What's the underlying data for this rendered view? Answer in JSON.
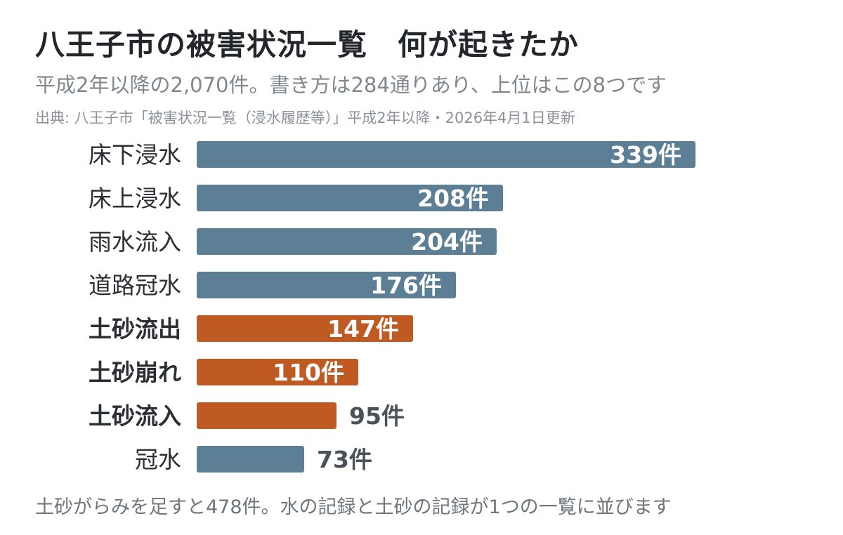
{
  "header": {
    "title": "八王子市の被害状況一覧　何が起きたか",
    "subtitle": "平成2年以降の2,070件。書き方は284通りあり、上位はこの8つです",
    "source": "出典: 八王子市「被害状況一覧（浸水履歴等）」平成2年以降・2026年4月1日更新"
  },
  "footer": {
    "note": "土砂がらみを足すと478件。水の記録と土砂の記録が1つの一覧に並びます"
  },
  "colors": {
    "water": "#5c7f96",
    "sediment": "#c05a23",
    "label_default": "#2b2f33",
    "value_inside": "#ffffff",
    "value_outside": "#4a5157"
  },
  "chart_data": {
    "type": "bar",
    "orientation": "horizontal",
    "unit": "件",
    "categories": [
      "床下浸水",
      "床上浸水",
      "雨水流入",
      "道路冠水",
      "土砂流出",
      "土砂崩れ",
      "土砂流入",
      "冠水"
    ],
    "values": [
      339,
      208,
      204,
      176,
      147,
      110,
      95,
      73
    ],
    "group": [
      "water",
      "water",
      "water",
      "water",
      "sediment",
      "sediment",
      "sediment",
      "water"
    ],
    "value_labels": [
      "339件",
      "208件",
      "204件",
      "176件",
      "147件",
      "110件",
      "95件",
      "73件"
    ],
    "xlim": [
      0,
      339
    ],
    "grid": false,
    "legend": "none"
  }
}
